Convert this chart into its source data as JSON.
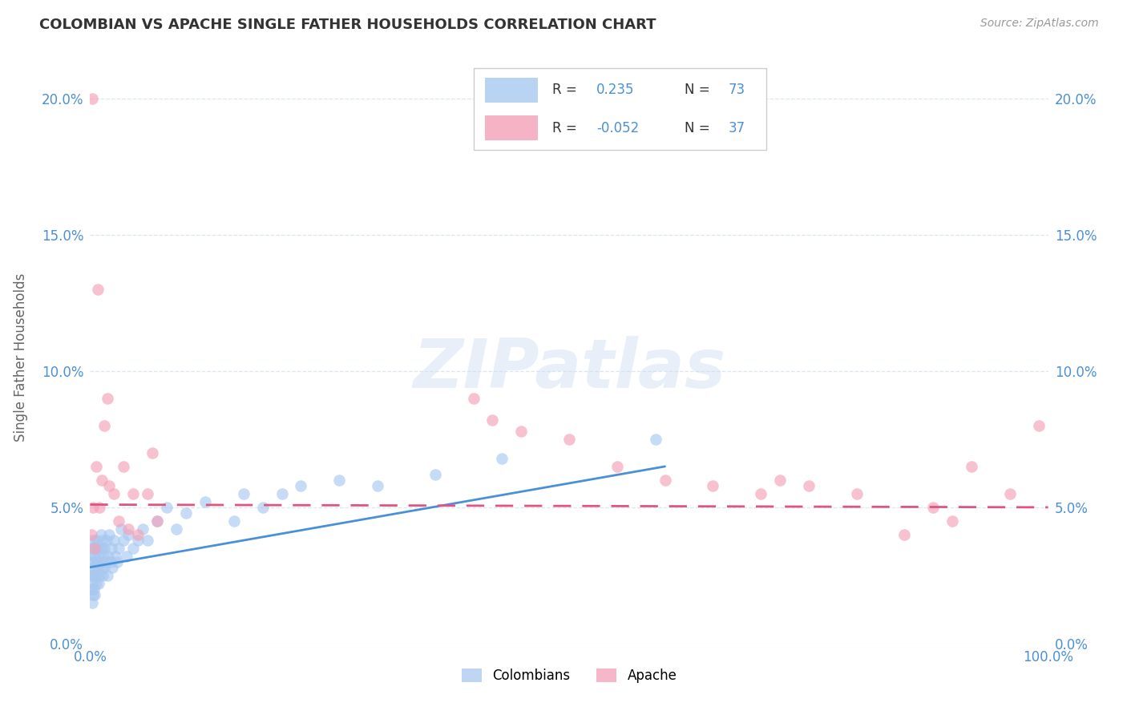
{
  "title": "COLOMBIAN VS APACHE SINGLE FATHER HOUSEHOLDS CORRELATION CHART",
  "source": "Source: ZipAtlas.com",
  "ylabel": "Single Father Households",
  "xlim": [
    0,
    1.0
  ],
  "ylim": [
    0,
    0.21
  ],
  "yticks": [
    0.0,
    0.05,
    0.1,
    0.15,
    0.2
  ],
  "ytick_labels": [
    "0.0%",
    "5.0%",
    "10.0%",
    "15.0%",
    "20.0%"
  ],
  "xticks": [
    0.0,
    1.0
  ],
  "xtick_labels": [
    "0.0%",
    "100.0%"
  ],
  "legend_labels": [
    "Colombians",
    "Apache"
  ],
  "R_colombian": 0.235,
  "N_colombian": 73,
  "R_apache": -0.052,
  "N_apache": 37,
  "color_colombian": "#a8c8f0",
  "color_apache": "#f4a0b8",
  "line_color_colombian": "#4a90d9",
  "line_color_apache": "#e05580",
  "background_color": "#ffffff",
  "grid_color": "#d8e4f0",
  "colombian_x": [
    0.001,
    0.001,
    0.001,
    0.002,
    0.002,
    0.002,
    0.002,
    0.003,
    0.003,
    0.003,
    0.003,
    0.004,
    0.004,
    0.004,
    0.005,
    0.005,
    0.005,
    0.006,
    0.006,
    0.006,
    0.007,
    0.007,
    0.007,
    0.008,
    0.008,
    0.009,
    0.009,
    0.01,
    0.01,
    0.011,
    0.011,
    0.012,
    0.012,
    0.013,
    0.013,
    0.014,
    0.015,
    0.015,
    0.016,
    0.017,
    0.018,
    0.019,
    0.02,
    0.021,
    0.022,
    0.023,
    0.025,
    0.026,
    0.028,
    0.03,
    0.032,
    0.035,
    0.038,
    0.04,
    0.045,
    0.05,
    0.055,
    0.06,
    0.07,
    0.08,
    0.09,
    0.1,
    0.12,
    0.15,
    0.16,
    0.18,
    0.2,
    0.22,
    0.26,
    0.3,
    0.36,
    0.43,
    0.59
  ],
  "colombian_y": [
    0.02,
    0.025,
    0.03,
    0.015,
    0.022,
    0.028,
    0.035,
    0.018,
    0.025,
    0.032,
    0.038,
    0.02,
    0.028,
    0.035,
    0.018,
    0.025,
    0.032,
    0.022,
    0.03,
    0.038,
    0.025,
    0.03,
    0.036,
    0.028,
    0.035,
    0.022,
    0.032,
    0.025,
    0.03,
    0.035,
    0.04,
    0.028,
    0.035,
    0.025,
    0.038,
    0.032,
    0.028,
    0.035,
    0.03,
    0.038,
    0.025,
    0.032,
    0.04,
    0.03,
    0.035,
    0.028,
    0.038,
    0.032,
    0.03,
    0.035,
    0.042,
    0.038,
    0.032,
    0.04,
    0.035,
    0.038,
    0.042,
    0.038,
    0.045,
    0.05,
    0.042,
    0.048,
    0.052,
    0.045,
    0.055,
    0.05,
    0.055,
    0.058,
    0.06,
    0.058,
    0.062,
    0.068,
    0.075
  ],
  "apache_x": [
    0.001,
    0.002,
    0.003,
    0.005,
    0.006,
    0.008,
    0.01,
    0.012,
    0.015,
    0.018,
    0.02,
    0.025,
    0.03,
    0.035,
    0.04,
    0.045,
    0.05,
    0.06,
    0.065,
    0.07,
    0.4,
    0.42,
    0.45,
    0.5,
    0.55,
    0.6,
    0.65,
    0.7,
    0.72,
    0.75,
    0.8,
    0.85,
    0.88,
    0.9,
    0.92,
    0.96,
    0.99
  ],
  "apache_y": [
    0.04,
    0.2,
    0.05,
    0.035,
    0.065,
    0.13,
    0.05,
    0.06,
    0.08,
    0.09,
    0.058,
    0.055,
    0.045,
    0.065,
    0.042,
    0.055,
    0.04,
    0.055,
    0.07,
    0.045,
    0.09,
    0.082,
    0.078,
    0.075,
    0.065,
    0.06,
    0.058,
    0.055,
    0.06,
    0.058,
    0.055,
    0.04,
    0.05,
    0.045,
    0.065,
    0.055,
    0.08
  ],
  "col_trend_x": [
    0.0,
    0.6
  ],
  "col_trend_y": [
    0.028,
    0.065
  ],
  "apa_trend_x": [
    0.0,
    1.0
  ],
  "apa_trend_y": [
    0.051,
    0.05
  ]
}
